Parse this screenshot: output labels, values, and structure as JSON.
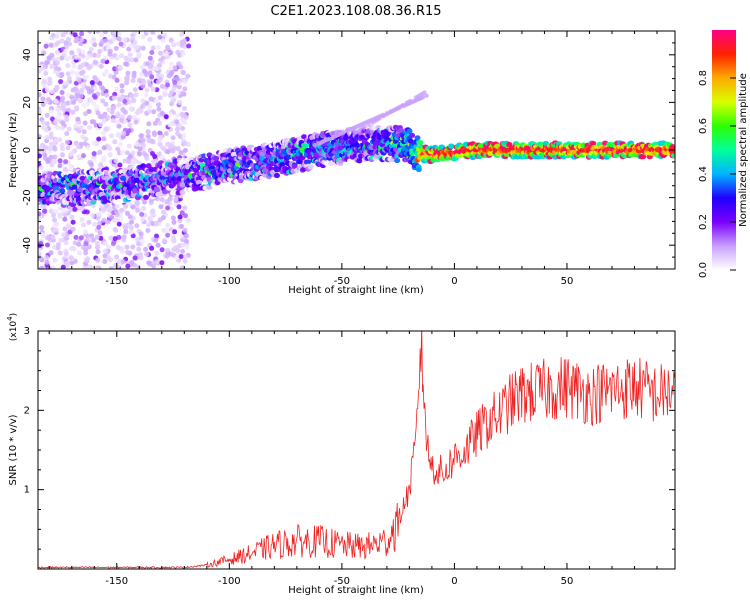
{
  "title": "C2E1.2023.108.08.36.R15",
  "colors": {
    "frame": "#000000",
    "snr_line": "#ee2222",
    "colormap": [
      "#ffffff",
      "#c8a0ff",
      "#7a00ff",
      "#2000ff",
      "#00b4ff",
      "#00ff9a",
      "#2dff00",
      "#d8ff00",
      "#ffaa00",
      "#ff2000",
      "#ff0088"
    ]
  },
  "chart_data": [
    {
      "type": "heatmap",
      "xlabel": "Height of straight line (km)",
      "ylabel": "Frequency (Hz)",
      "xlim": [
        -185,
        98
      ],
      "ylim": [
        -50,
        50
      ],
      "xticks": [
        -150,
        -100,
        -50,
        0,
        50
      ],
      "yticks": [
        -40,
        -20,
        0,
        20,
        40
      ],
      "grid": false,
      "ridge": {
        "description_points": [
          [
            -185,
            -17
          ],
          [
            -150,
            -15
          ],
          [
            -120,
            -11
          ],
          [
            -100,
            -7
          ],
          [
            -80,
            -4
          ],
          [
            -60,
            0
          ],
          [
            -45,
            2
          ],
          [
            -30,
            3
          ],
          [
            -20,
            2
          ],
          [
            -18,
            -1
          ],
          [
            -10,
            -2
          ],
          [
            0,
            -1
          ],
          [
            10,
            0
          ],
          [
            50,
            0
          ],
          [
            98,
            0
          ]
        ],
        "peak_amplitude_from_km": -15
      },
      "colorbar": {
        "label": "Normalized spectral amplitude",
        "range": [
          0,
          1
        ],
        "ticks": [
          "0.0",
          "0.2",
          "0.4",
          "0.6",
          "0.8"
        ]
      }
    },
    {
      "type": "line",
      "xlabel": "Height of straight line (km)",
      "ylabel": "SNR (10 * v/v)",
      "yscale_label": "(x10",
      "yscale_exp": "4",
      "yscale_suffix": ")",
      "xlim": [
        -185,
        98
      ],
      "ylim": [
        0,
        3
      ],
      "xticks": [
        -150,
        -100,
        -50,
        0,
        50
      ],
      "yticks": [
        1,
        2,
        3
      ],
      "series": [
        {
          "x": [
            -185,
            -150,
            -120,
            -110,
            -100,
            -90,
            -80,
            -70,
            -60,
            -50,
            -40,
            -30,
            -25,
            -20,
            -17,
            -15,
            -12,
            -10,
            -5,
            0,
            5,
            10,
            15,
            20,
            25,
            30,
            40,
            50,
            60,
            70,
            80,
            90,
            98
          ],
          "y": [
            0.02,
            0.02,
            0.02,
            0.05,
            0.12,
            0.2,
            0.3,
            0.35,
            0.35,
            0.3,
            0.28,
            0.35,
            0.6,
            1.0,
            1.6,
            2.9,
            1.5,
            1.3,
            1.2,
            1.4,
            1.5,
            1.7,
            1.85,
            1.95,
            2.1,
            2.2,
            2.25,
            2.3,
            2.2,
            2.25,
            2.3,
            2.2,
            2.25
          ]
        }
      ]
    }
  ]
}
